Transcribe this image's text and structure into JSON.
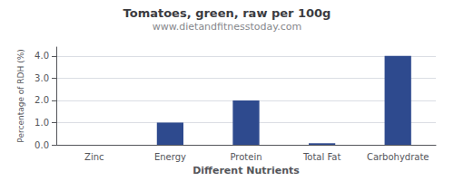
{
  "chart_data": {
    "type": "bar",
    "title": "Tomatoes, green, raw per 100g",
    "subtitle": "www.dietandfitnesstoday.com",
    "xlabel": "Different Nutrients",
    "ylabel": "Percentage of RDH (%)",
    "categories": [
      "Zinc",
      "Energy",
      "Protein",
      "Total Fat",
      "Carbohydrate"
    ],
    "values": [
      0.0,
      1.0,
      2.0,
      0.07,
      4.0
    ],
    "color": "#2e4a8e",
    "ylim": [
      0,
      4.4
    ],
    "yticks": [
      {
        "value": 0,
        "label": "0.0"
      },
      {
        "value": 1,
        "label": "1.0"
      },
      {
        "value": 2,
        "label": "2.0"
      },
      {
        "value": 3,
        "label": "3.0"
      },
      {
        "value": 4,
        "label": "4.0"
      }
    ],
    "grid": true
  }
}
